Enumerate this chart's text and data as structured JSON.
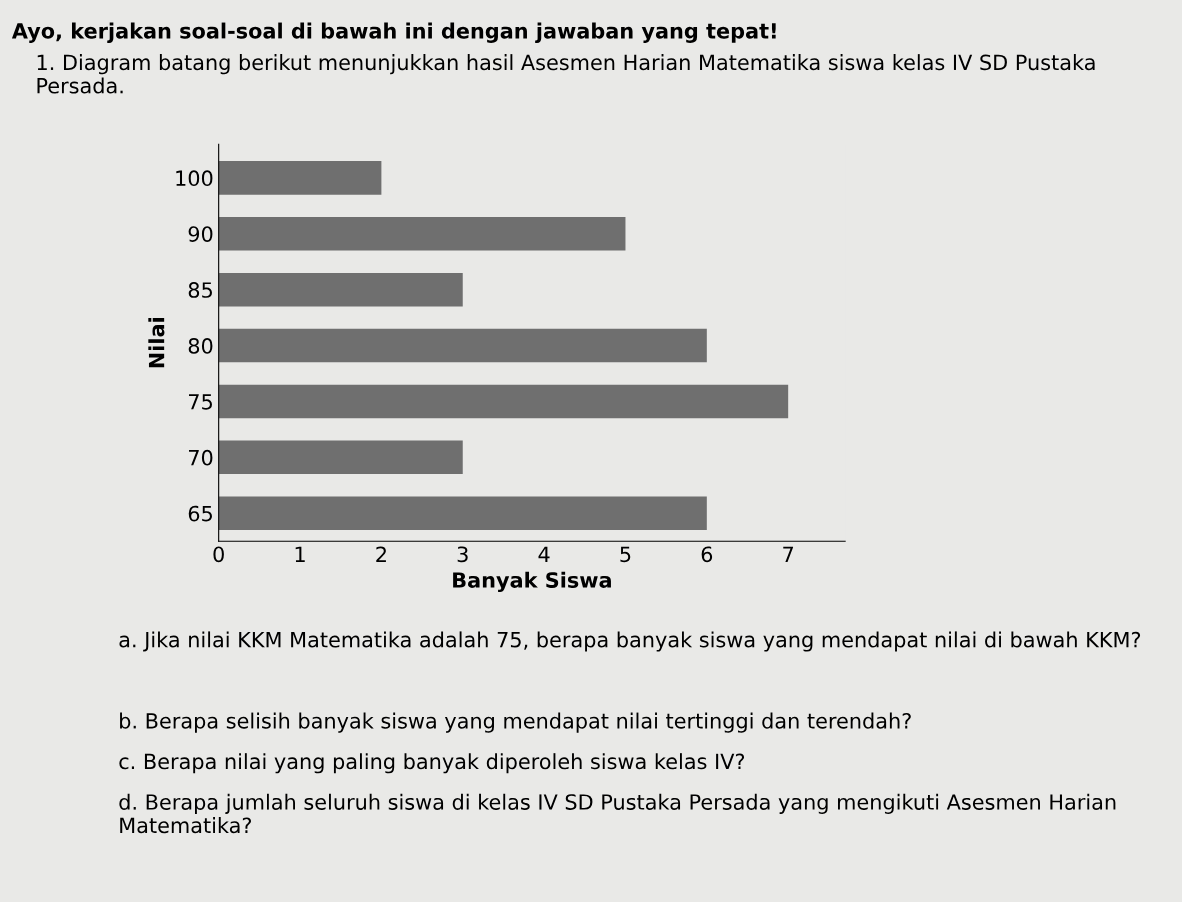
{
  "chart_data": {
    "type": "bar",
    "orientation": "horizontal",
    "title": "Ayo, kerjakan soal-soal di bawah ini dengan jawaban yang tepat!",
    "subtitle": "1. Diagram batang berikut menunjukkan hasil Asesmen Harian Matematika siswa kelas IV SD Pustaka Persada.",
    "xlabel": "Banyak Siswa",
    "ylabel": "Nilai",
    "categories": [
      "100",
      "90",
      "85",
      "80",
      "75",
      "70",
      "65"
    ],
    "values": [
      2,
      5,
      3,
      6,
      7,
      3,
      6
    ],
    "color": "#6f6f6f",
    "xlim": [
      0,
      7.7
    ],
    "xticks": [
      0,
      1,
      2,
      3,
      4,
      5,
      6,
      7
    ],
    "grid": false,
    "legend": false,
    "annotations": [
      "a. Jika nilai KKM Matematika adalah 75, berapa banyak siswa yang mendapat nilai di bawah KKM?",
      "b. Berapa selisih banyak siswa yang mendapat nilai tertinggi dan terendah?",
      "c. Berapa nilai yang paling banyak diperoleh siswa kelas IV?",
      "d. Berapa jumlah seluruh siswa di kelas IV SD Pustaka Persada yang mengikuti Asesmen Harian Matematika?"
    ]
  }
}
